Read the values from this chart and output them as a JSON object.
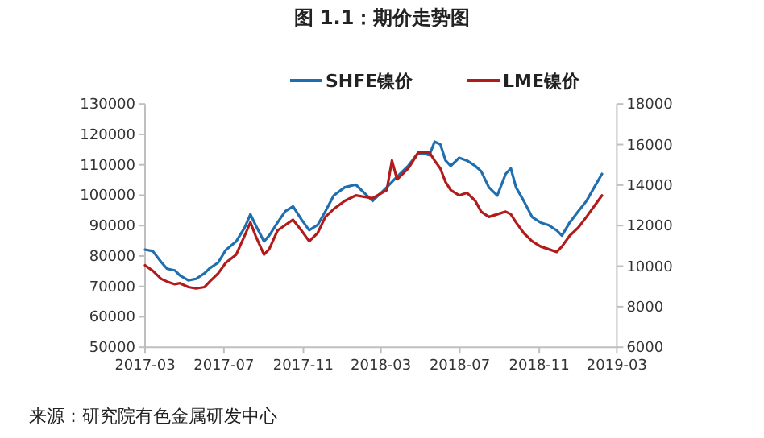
{
  "chart_data": {
    "type": "line",
    "title": "图 1.1：期价走势图",
    "annotations": [
      "来源：研究院有色金属研发中心"
    ],
    "xlim": [
      "2017-03-01",
      "2019-03-01"
    ],
    "xticks": [
      {
        "value": "2017-03-01",
        "label": "2017-03"
      },
      {
        "value": "2017-07-01",
        "label": "2017-07"
      },
      {
        "value": "2017-11-01",
        "label": "2017-11"
      },
      {
        "value": "2018-03-01",
        "label": "2018-03"
      },
      {
        "value": "2018-07-01",
        "label": "2018-07"
      },
      {
        "value": "2018-11-01",
        "label": "2018-11"
      },
      {
        "value": "2019-03-01",
        "label": "2019-03"
      }
    ],
    "ylim": [
      50000,
      130000
    ],
    "yticks": [
      50000,
      60000,
      70000,
      80000,
      90000,
      100000,
      110000,
      120000,
      130000
    ],
    "y2lim": [
      6000,
      18000
    ],
    "y2ticks": [
      6000,
      8000,
      10000,
      12000,
      14000,
      16000,
      18000
    ],
    "legend": "top",
    "grid": false,
    "marker": "none",
    "line_style": "solid",
    "series": [
      {
        "name": "SHFE镍价",
        "color": "#1f6fb0",
        "x": [
          "2017-03-01",
          "2017-03-13",
          "2017-03-26",
          "2017-04-04",
          "2017-04-16",
          "2017-04-24",
          "2017-05-07",
          "2017-05-19",
          "2017-06-01",
          "2017-06-09",
          "2017-06-22",
          "2017-07-04",
          "2017-07-20",
          "2017-08-02",
          "2017-08-11",
          "2017-08-19",
          "2017-09-01",
          "2017-09-09",
          "2017-09-22",
          "2017-10-04",
          "2017-10-16",
          "2017-10-29",
          "2017-11-10",
          "2017-11-23",
          "2017-12-05",
          "2017-12-18",
          "2018-01-04",
          "2018-01-21",
          "2018-02-16",
          "2018-03-10",
          "2018-03-26",
          "2018-04-12",
          "2018-04-28",
          "2018-05-15",
          "2018-05-23",
          "2018-06-01",
          "2018-06-09",
          "2018-06-17",
          "2018-06-30",
          "2018-07-12",
          "2018-07-25",
          "2018-08-03",
          "2018-08-15",
          "2018-08-28",
          "2018-09-10",
          "2018-09-18",
          "2018-09-26",
          "2018-10-08",
          "2018-10-21",
          "2018-11-03",
          "2018-11-16",
          "2018-11-28",
          "2018-12-06",
          "2018-12-18",
          "2018-12-31",
          "2019-01-13",
          "2019-01-25",
          "2019-02-06"
        ],
        "values": [
          82100,
          81600,
          78000,
          75800,
          75300,
          73600,
          72000,
          72500,
          74300,
          76000,
          77800,
          82000,
          84800,
          89300,
          93700,
          90200,
          84800,
          86700,
          91000,
          94700,
          96300,
          92000,
          88500,
          90200,
          94700,
          99900,
          102600,
          103500,
          98100,
          102600,
          106100,
          109600,
          114100,
          113200,
          117600,
          116700,
          111400,
          109600,
          112300,
          111400,
          109600,
          107900,
          102600,
          99900,
          107000,
          108800,
          102600,
          98100,
          92800,
          91000,
          90100,
          88400,
          86700,
          91000,
          94600,
          98100,
          102600,
          107000
        ]
      },
      {
        "name": "LME镍价",
        "color": "#b01c1c",
        "axis": "y2",
        "x": [
          "2017-03-01",
          "2017-03-13",
          "2017-03-26",
          "2017-04-04",
          "2017-04-16",
          "2017-04-24",
          "2017-05-07",
          "2017-05-19",
          "2017-06-01",
          "2017-06-09",
          "2017-06-22",
          "2017-07-04",
          "2017-07-20",
          "2017-08-02",
          "2017-08-11",
          "2017-08-19",
          "2017-09-01",
          "2017-09-09",
          "2017-09-22",
          "2017-10-04",
          "2017-10-16",
          "2017-10-29",
          "2017-11-10",
          "2017-11-23",
          "2017-12-05",
          "2017-12-18",
          "2018-01-04",
          "2018-01-21",
          "2018-02-16",
          "2018-03-10",
          "2018-03-18",
          "2018-03-26",
          "2018-04-12",
          "2018-04-28",
          "2018-05-15",
          "2018-05-23",
          "2018-06-01",
          "2018-06-09",
          "2018-06-17",
          "2018-06-30",
          "2018-07-12",
          "2018-07-25",
          "2018-08-03",
          "2018-08-15",
          "2018-08-28",
          "2018-09-10",
          "2018-09-18",
          "2018-09-26",
          "2018-10-08",
          "2018-10-21",
          "2018-11-03",
          "2018-11-16",
          "2018-11-28",
          "2018-12-06",
          "2018-12-18",
          "2018-12-31",
          "2019-01-13",
          "2019-01-25",
          "2019-02-06"
        ],
        "values": [
          10040,
          9770,
          9370,
          9240,
          9110,
          9160,
          8970,
          8900,
          8970,
          9240,
          9640,
          10170,
          10570,
          11500,
          12160,
          11500,
          10570,
          10830,
          11760,
          12030,
          12290,
          11760,
          11230,
          11630,
          12430,
          12820,
          13220,
          13490,
          13350,
          13750,
          15210,
          14280,
          14810,
          15610,
          15610,
          15210,
          14810,
          14150,
          13750,
          13490,
          13620,
          13220,
          12690,
          12430,
          12560,
          12690,
          12560,
          12160,
          11630,
          11230,
          10970,
          10830,
          10700,
          10970,
          11500,
          11890,
          12430,
          12960,
          13490
        ]
      }
    ]
  }
}
